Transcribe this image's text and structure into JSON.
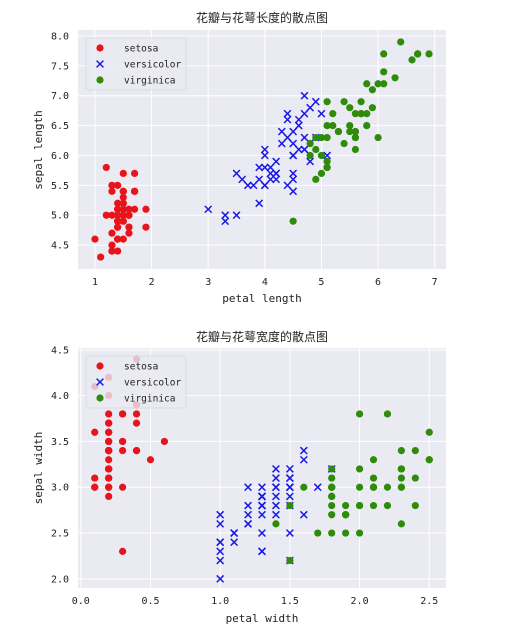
{
  "colors": {
    "setosa": "#e8131b",
    "versicolor": "#1a1ae6",
    "virginica": "#2e8c0a",
    "plot_bg": "#eaeaf2",
    "grid": "#ffffff"
  },
  "markers": {
    "setosa": "circle",
    "versicolor": "x",
    "virginica": "circle"
  },
  "chart_data": [
    {
      "type": "scatter",
      "title": "花瓣与花萼长度的散点图",
      "xlabel": "petal length",
      "ylabel": "sepal length",
      "xlim": [
        0.7,
        7.2
      ],
      "ylim": [
        4.1,
        8.1
      ],
      "xticks": [
        1,
        2,
        3,
        4,
        5,
        6,
        7
      ],
      "yticks": [
        4.5,
        5.0,
        5.5,
        6.0,
        6.5,
        7.0,
        7.5,
        8.0
      ],
      "grid": true,
      "legend": "top-left",
      "series": [
        {
          "name": "setosa",
          "x": [
            1.4,
            1.4,
            1.3,
            1.5,
            1.4,
            1.7,
            1.4,
            1.5,
            1.4,
            1.5,
            1.5,
            1.6,
            1.4,
            1.1,
            1.2,
            1.5,
            1.3,
            1.4,
            1.7,
            1.5,
            1.7,
            1.5,
            1.0,
            1.7,
            1.9,
            1.6,
            1.6,
            1.5,
            1.4,
            1.6,
            1.6,
            1.5,
            1.5,
            1.4,
            1.5,
            1.2,
            1.3,
            1.4,
            1.3,
            1.5,
            1.3,
            1.3,
            1.3,
            1.6,
            1.9,
            1.4,
            1.6,
            1.4,
            1.5,
            1.4
          ],
          "y": [
            5.1,
            4.9,
            4.7,
            4.6,
            5.0,
            5.4,
            4.6,
            5.0,
            4.4,
            4.9,
            5.4,
            4.8,
            4.8,
            4.3,
            5.8,
            5.7,
            5.4,
            5.1,
            5.7,
            5.1,
            5.4,
            5.1,
            4.6,
            5.1,
            4.8,
            5.0,
            5.0,
            5.2,
            5.2,
            4.7,
            4.8,
            5.4,
            5.2,
            5.5,
            4.9,
            5.0,
            5.5,
            4.9,
            4.4,
            5.1,
            5.0,
            4.5,
            4.4,
            5.0,
            5.1,
            4.8,
            5.1,
            4.6,
            5.3,
            5.0
          ]
        },
        {
          "name": "versicolor",
          "x": [
            4.7,
            4.5,
            4.9,
            4.0,
            4.6,
            4.5,
            4.7,
            3.3,
            4.6,
            3.9,
            3.5,
            4.2,
            4.0,
            4.7,
            3.6,
            4.4,
            4.5,
            4.1,
            4.5,
            3.9,
            4.8,
            4.0,
            4.9,
            4.7,
            4.3,
            4.4,
            4.8,
            5.0,
            4.5,
            3.5,
            3.8,
            3.7,
            3.9,
            5.1,
            4.5,
            4.5,
            4.7,
            4.4,
            4.1,
            4.0,
            4.4,
            4.6,
            4.0,
            3.3,
            4.2,
            4.2,
            4.2,
            4.3,
            3.0,
            4.1
          ],
          "y": [
            7.0,
            6.4,
            6.9,
            5.5,
            6.5,
            5.7,
            6.3,
            4.9,
            6.6,
            5.2,
            5.0,
            5.9,
            6.0,
            6.1,
            5.6,
            6.7,
            5.6,
            5.8,
            6.2,
            5.6,
            5.9,
            6.1,
            6.3,
            6.1,
            6.4,
            6.6,
            6.8,
            6.7,
            6.0,
            5.7,
            5.5,
            5.5,
            5.8,
            6.0,
            5.4,
            6.0,
            6.7,
            6.3,
            5.6,
            5.5,
            5.5,
            6.1,
            5.8,
            5.0,
            5.6,
            5.7,
            5.7,
            6.2,
            5.1,
            5.7
          ]
        },
        {
          "name": "virginica",
          "x": [
            6.0,
            5.1,
            5.9,
            5.6,
            5.8,
            6.6,
            4.5,
            6.3,
            5.8,
            6.1,
            5.1,
            5.3,
            5.5,
            5.0,
            5.1,
            5.3,
            5.5,
            6.7,
            6.9,
            5.0,
            5.7,
            4.9,
            6.7,
            4.9,
            5.7,
            6.0,
            4.8,
            4.9,
            5.6,
            5.8,
            6.1,
            6.4,
            5.6,
            5.1,
            5.6,
            6.1,
            5.6,
            5.5,
            4.8,
            5.4,
            5.6,
            5.1,
            5.1,
            5.9,
            5.7,
            5.2,
            5.0,
            5.2,
            5.4,
            5.1
          ],
          "y": [
            6.3,
            5.8,
            7.1,
            6.3,
            6.5,
            7.6,
            4.9,
            7.3,
            6.7,
            7.2,
            6.5,
            6.4,
            6.8,
            5.7,
            5.8,
            6.4,
            6.5,
            7.7,
            7.7,
            6.0,
            6.9,
            5.6,
            7.7,
            6.3,
            6.7,
            7.2,
            6.2,
            6.1,
            6.4,
            7.2,
            7.4,
            7.9,
            6.4,
            6.3,
            6.1,
            7.7,
            6.3,
            6.4,
            6.0,
            6.9,
            6.7,
            6.9,
            5.8,
            6.8,
            6.7,
            6.7,
            6.3,
            6.5,
            6.2,
            5.9
          ]
        }
      ]
    },
    {
      "type": "scatter",
      "title": "花瓣与花萼宽度的散点图",
      "xlabel": "petal width",
      "ylabel": "sepal width",
      "xlim": [
        -0.02,
        2.62
      ],
      "ylim": [
        1.9,
        4.52
      ],
      "xticks": [
        0.0,
        0.5,
        1.0,
        1.5,
        2.0,
        2.5
      ],
      "yticks": [
        2.0,
        2.5,
        3.0,
        3.5,
        4.0,
        4.5
      ],
      "grid": true,
      "legend": "top-left",
      "series": [
        {
          "name": "setosa",
          "x": [
            0.2,
            0.2,
            0.2,
            0.2,
            0.2,
            0.4,
            0.3,
            0.2,
            0.2,
            0.1,
            0.2,
            0.2,
            0.1,
            0.1,
            0.2,
            0.4,
            0.4,
            0.3,
            0.3,
            0.3,
            0.2,
            0.4,
            0.2,
            0.5,
            0.2,
            0.2,
            0.4,
            0.2,
            0.2,
            0.2,
            0.2,
            0.4,
            0.1,
            0.2,
            0.2,
            0.2,
            0.2,
            0.1,
            0.2,
            0.2,
            0.3,
            0.3,
            0.2,
            0.6,
            0.4,
            0.3,
            0.2,
            0.2,
            0.2,
            0.2
          ],
          "y": [
            3.5,
            3.0,
            3.2,
            3.1,
            3.6,
            3.9,
            3.4,
            3.4,
            2.9,
            3.1,
            3.7,
            3.4,
            3.0,
            3.0,
            4.0,
            4.4,
            3.9,
            3.5,
            3.8,
            3.8,
            3.4,
            3.7,
            3.6,
            3.3,
            3.4,
            3.0,
            3.4,
            3.5,
            3.4,
            3.2,
            3.1,
            3.4,
            4.1,
            4.2,
            3.1,
            3.2,
            3.5,
            3.6,
            3.0,
            3.4,
            3.5,
            2.3,
            3.2,
            3.5,
            3.8,
            3.0,
            3.8,
            3.2,
            3.7,
            3.3
          ]
        },
        {
          "name": "versicolor",
          "x": [
            1.4,
            1.5,
            1.5,
            1.3,
            1.5,
            1.3,
            1.6,
            1.0,
            1.3,
            1.4,
            1.0,
            1.5,
            1.0,
            1.4,
            1.3,
            1.4,
            1.5,
            1.0,
            1.5,
            1.1,
            1.8,
            1.3,
            1.5,
            1.2,
            1.3,
            1.4,
            1.4,
            1.7,
            1.5,
            1.0,
            1.1,
            1.0,
            1.2,
            1.6,
            1.5,
            1.6,
            1.5,
            1.3,
            1.3,
            1.3,
            1.2,
            1.4,
            1.2,
            1.0,
            1.3,
            1.2,
            1.3,
            1.3,
            1.1,
            1.3
          ],
          "y": [
            3.2,
            3.2,
            3.1,
            2.3,
            2.8,
            2.8,
            3.3,
            2.4,
            2.9,
            2.7,
            2.0,
            3.0,
            2.2,
            2.9,
            2.9,
            3.1,
            3.0,
            2.7,
            2.2,
            2.5,
            3.2,
            2.8,
            2.5,
            2.8,
            2.9,
            3.0,
            2.8,
            3.0,
            2.9,
            2.6,
            2.4,
            2.4,
            2.7,
            2.7,
            3.0,
            3.4,
            3.1,
            2.3,
            3.0,
            2.5,
            2.6,
            3.0,
            2.6,
            2.3,
            2.7,
            3.0,
            2.9,
            2.9,
            2.5,
            2.8
          ]
        },
        {
          "name": "virginica",
          "x": [
            2.5,
            1.9,
            2.1,
            1.8,
            2.2,
            2.1,
            1.7,
            1.8,
            1.8,
            2.5,
            2.0,
            1.9,
            2.1,
            2.0,
            2.4,
            2.3,
            1.8,
            2.2,
            2.3,
            1.5,
            2.3,
            2.0,
            2.0,
            1.8,
            2.1,
            1.8,
            1.8,
            1.8,
            2.1,
            1.6,
            1.9,
            2.0,
            2.2,
            1.5,
            1.4,
            2.3,
            2.4,
            1.8,
            1.8,
            2.1,
            2.4,
            2.3,
            1.9,
            2.3,
            2.5,
            2.3,
            1.9,
            2.0,
            2.3,
            1.8
          ],
          "y": [
            3.3,
            2.7,
            3.0,
            2.9,
            3.0,
            3.0,
            2.5,
            2.9,
            2.5,
            3.6,
            3.2,
            2.7,
            3.0,
            2.5,
            2.8,
            3.2,
            3.0,
            3.8,
            2.6,
            2.2,
            3.2,
            2.8,
            2.8,
            2.7,
            3.3,
            3.2,
            2.8,
            3.0,
            2.8,
            3.0,
            2.8,
            3.8,
            2.8,
            2.8,
            2.6,
            3.0,
            3.4,
            3.1,
            3.0,
            3.1,
            3.1,
            3.1,
            2.7,
            3.2,
            3.3,
            3.0,
            2.5,
            3.0,
            3.4,
            3.0
          ]
        }
      ]
    }
  ]
}
